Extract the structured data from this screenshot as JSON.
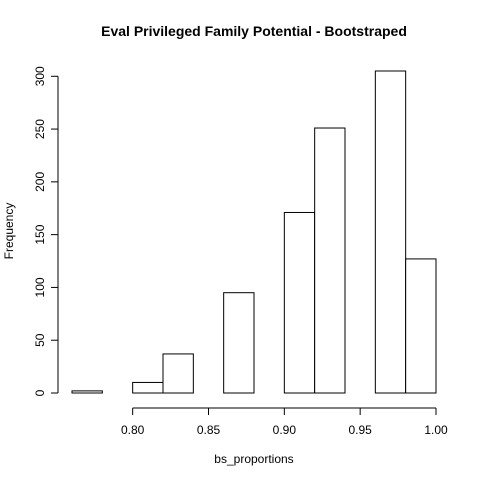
{
  "chart_data": {
    "type": "bar",
    "title": "Eval Privileged Family Potential - Bootstraped",
    "xlabel": "bs_proportions",
    "ylabel": "Frequency",
    "bins": [
      {
        "x0": 0.76,
        "x1": 0.78,
        "count": 2
      },
      {
        "x0": 0.78,
        "x1": 0.8,
        "count": 0
      },
      {
        "x0": 0.8,
        "x1": 0.82,
        "count": 10
      },
      {
        "x0": 0.82,
        "x1": 0.84,
        "count": 37
      },
      {
        "x0": 0.84,
        "x1": 0.86,
        "count": 0
      },
      {
        "x0": 0.86,
        "x1": 0.88,
        "count": 95
      },
      {
        "x0": 0.88,
        "x1": 0.9,
        "count": 0
      },
      {
        "x0": 0.9,
        "x1": 0.92,
        "count": 171
      },
      {
        "x0": 0.92,
        "x1": 0.94,
        "count": 251
      },
      {
        "x0": 0.94,
        "x1": 0.96,
        "count": 0
      },
      {
        "x0": 0.96,
        "x1": 0.98,
        "count": 305
      },
      {
        "x0": 0.98,
        "x1": 1.0,
        "count": 127
      }
    ],
    "xlim": [
      0.76,
      1.0
    ],
    "ylim": [
      0,
      305
    ],
    "x_ticks": [
      0.8,
      0.85,
      0.9,
      0.95,
      1.0
    ],
    "x_tick_labels": [
      "0.80",
      "0.85",
      "0.90",
      "0.95",
      "1.00"
    ],
    "y_ticks": [
      0,
      50,
      100,
      150,
      200,
      250,
      300
    ],
    "y_tick_labels": [
      "0",
      "50",
      "100",
      "150",
      "200",
      "250",
      "300"
    ],
    "grid": false,
    "legend": "none",
    "colors": {
      "bar_fill": "#ffffff",
      "bar_stroke": "#000000",
      "axis": "#000000"
    }
  }
}
